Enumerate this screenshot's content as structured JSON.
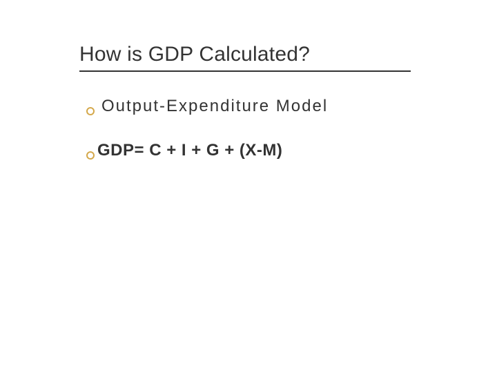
{
  "slide": {
    "title": "How is GDP Calculated?",
    "title_fontsize": 30,
    "title_color": "#333333",
    "underline_color": "#333333",
    "underline_width": 480,
    "background_color": "#ffffff",
    "bullet_marker_color": "#d4a84b",
    "bullets": [
      {
        "text": "Output-Expenditure Model",
        "bold": false,
        "fontsize": 24,
        "letter_spacing": 2,
        "color": "#333333"
      },
      {
        "text": "GDP= C + I + G + (X-M)",
        "bold": true,
        "fontsize": 24,
        "letter_spacing": 0.5,
        "color": "#333333"
      }
    ]
  }
}
